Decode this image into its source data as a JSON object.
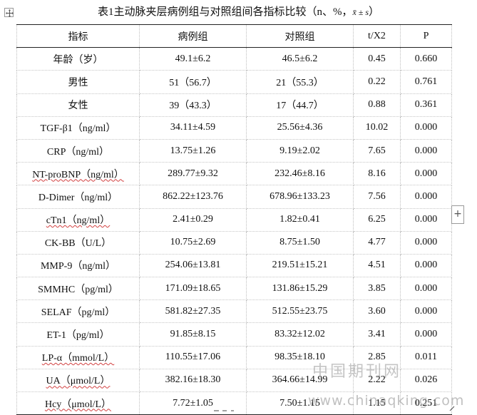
{
  "caption": {
    "text": "表1主动脉夹层病例组与对照组间各指标比较（n、%，",
    "formula": "x̄ ± s",
    "close": "）"
  },
  "table": {
    "headers": [
      "指标",
      "病例组",
      "对照组",
      "t/X2",
      "P"
    ],
    "rows": [
      {
        "indicator": "年龄（岁）",
        "case": "49.1±6.2",
        "control": "46.5±6.2",
        "stat": "0.45",
        "p": "0.660"
      },
      {
        "indicator": "男性",
        "case": "51（56.7）",
        "control": "21（55.3）",
        "stat": "0.22",
        "p": "0.761"
      },
      {
        "indicator": "女性",
        "case": "39（43.3）",
        "control": "17（44.7）",
        "stat": "0.88",
        "p": "0.361"
      },
      {
        "indicator": "TGF-β1（ng/ml）",
        "case": "34.11±4.59",
        "control": "25.56±4.36",
        "stat": "10.02",
        "p": "0.000"
      },
      {
        "indicator": "CRP（ng/ml）",
        "case": "13.75±1.26",
        "control": "9.19±2.02",
        "stat": "7.65",
        "p": "0.000"
      },
      {
        "indicator": "NT-proBNP（ng/ml）",
        "case": "289.77±9.32",
        "control": "232.46±8.16",
        "stat": "8.16",
        "p": "0.000"
      },
      {
        "indicator": "D-Dimer（ng/ml）",
        "case": "862.22±123.76",
        "control": "678.96±133.23",
        "stat": "7.56",
        "p": "0.000"
      },
      {
        "indicator": "cTn1（ng/ml）",
        "case": "2.41±0.29",
        "control": "1.82±0.41",
        "stat": "6.25",
        "p": "0.000"
      },
      {
        "indicator": "CK-BB（U/L）",
        "case": "10.75±2.69",
        "control": "8.75±1.50",
        "stat": "4.77",
        "p": "0.000"
      },
      {
        "indicator": "MMP-9（ng/ml）",
        "case": "254.06±13.81",
        "control": "219.51±15.21",
        "stat": "4.51",
        "p": "0.000"
      },
      {
        "indicator": "SMMHC（pg/ml）",
        "case": "171.09±18.65",
        "control": "131.86±15.29",
        "stat": "3.85",
        "p": "0.000"
      },
      {
        "indicator": "SELAF（pg/ml）",
        "case": "581.82±27.35",
        "control": "512.55±23.75",
        "stat": "3.60",
        "p": "0.000"
      },
      {
        "indicator": "ET-1（pg/ml）",
        "case": "91.85±8.15",
        "control": "83.32±12.02",
        "stat": "3.41",
        "p": "0.000"
      },
      {
        "indicator": "LP-α（mmol/L）",
        "case": "110.55±17.06",
        "control": "98.35±18.10",
        "stat": "2.85",
        "p": "0.011"
      },
      {
        "indicator": "UA（μmol/L）",
        "case": "382.16±18.30",
        "control": "364.66±14.99",
        "stat": "2.22",
        "p": "0.026"
      },
      {
        "indicator": "Hcy（μmol/L）",
        "case": "7.72±1.05",
        "control": "7.50±1.15",
        "stat": "1.15",
        "p": "0.251"
      }
    ]
  },
  "controls": {
    "add_column": "+"
  },
  "watermark": {
    "cn": "中国期刊网",
    "url": "www.chinaqking.com"
  }
}
